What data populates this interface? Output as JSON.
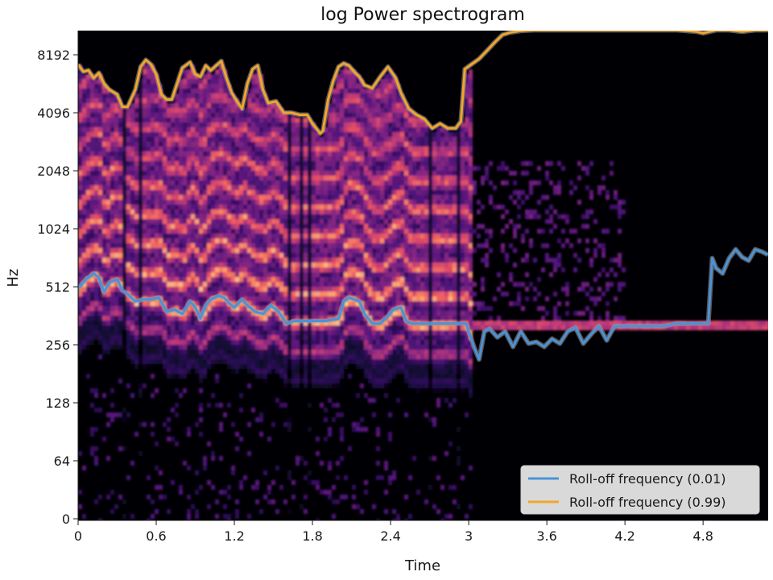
{
  "chart_data": {
    "type": "heatmap",
    "title": "log Power spectrogram",
    "xlabel": "Time",
    "ylabel": "Hz",
    "x_ticks": [
      "0",
      "0.6",
      "1.2",
      "1.8",
      "2.4",
      "3",
      "3.6",
      "4.2",
      "4.8"
    ],
    "x_tick_values": [
      0,
      0.6,
      1.2,
      1.8,
      2.4,
      3.0,
      3.6,
      4.2,
      4.8
    ],
    "y_ticks": [
      "0",
      "64",
      "128",
      "256",
      "512",
      "1024",
      "2048",
      "4096",
      "8192"
    ],
    "y_tick_values": [
      0,
      64,
      128,
      256,
      512,
      1024,
      2048,
      4096,
      8192
    ],
    "xlim": [
      0,
      5.3
    ],
    "ylim": [
      0,
      11025
    ],
    "y_scale": "log2",
    "colormap": "magma",
    "legend_position": "bottom-right",
    "series": [
      {
        "name": "Roll-off frequency (0.01)",
        "color": "#4c92d6",
        "time": [
          0,
          0.06,
          0.12,
          0.16,
          0.2,
          0.24,
          0.3,
          0.34,
          0.38,
          0.44,
          0.5,
          0.56,
          0.62,
          0.68,
          0.74,
          0.8,
          0.86,
          0.9,
          0.94,
          0.98,
          1.02,
          1.08,
          1.12,
          1.16,
          1.2,
          1.26,
          1.3,
          1.36,
          1.42,
          1.48,
          1.54,
          1.6,
          1.66,
          1.72,
          1.8,
          1.9,
          2.0,
          2.04,
          2.08,
          2.12,
          2.16,
          2.2,
          2.26,
          2.32,
          2.38,
          2.42,
          2.48,
          2.52,
          2.56,
          2.62,
          2.7,
          2.8,
          2.9,
          2.98,
          3.0,
          3.04,
          3.08,
          3.12,
          3.16,
          3.22,
          3.28,
          3.34,
          3.4,
          3.46,
          3.52,
          3.58,
          3.64,
          3.7,
          3.76,
          3.82,
          3.88,
          3.94,
          4.0,
          4.06,
          4.12,
          4.18,
          4.24,
          4.3,
          4.4,
          4.5,
          4.6,
          4.7,
          4.8,
          4.84,
          4.87,
          4.9,
          4.95,
          5.0,
          5.05,
          5.1,
          5.15,
          5.2,
          5.25,
          5.3
        ],
        "values": [
          500,
          560,
          600,
          570,
          480,
          540,
          560,
          490,
          470,
          430,
          440,
          440,
          450,
          380,
          390,
          370,
          430,
          400,
          350,
          410,
          440,
          460,
          450,
          420,
          400,
          440,
          410,
          380,
          370,
          410,
          380,
          330,
          340,
          340,
          340,
          340,
          350,
          430,
          450,
          440,
          430,
          370,
          330,
          330,
          360,
          390,
          400,
          340,
          330,
          330,
          330,
          330,
          330,
          330,
          300,
          250,
          215,
          300,
          310,
          280,
          300,
          250,
          300,
          260,
          265,
          250,
          275,
          260,
          300,
          315,
          260,
          290,
          320,
          270,
          320,
          320,
          320,
          320,
          320,
          320,
          330,
          330,
          330,
          330,
          720,
          640,
          600,
          720,
          800,
          730,
          700,
          800,
          780,
          750
        ]
      },
      {
        "name": "Roll-off frequency (0.99)",
        "color": "#f2a52b",
        "time": [
          0,
          0.04,
          0.08,
          0.12,
          0.16,
          0.2,
          0.24,
          0.3,
          0.34,
          0.38,
          0.44,
          0.48,
          0.52,
          0.56,
          0.6,
          0.64,
          0.68,
          0.72,
          0.8,
          0.86,
          0.9,
          0.94,
          0.98,
          1.02,
          1.06,
          1.1,
          1.14,
          1.18,
          1.22,
          1.26,
          1.3,
          1.34,
          1.38,
          1.42,
          1.46,
          1.52,
          1.58,
          1.64,
          1.7,
          1.76,
          1.8,
          1.86,
          1.88,
          1.92,
          1.96,
          2.0,
          2.04,
          2.08,
          2.12,
          2.16,
          2.2,
          2.26,
          2.32,
          2.38,
          2.44,
          2.48,
          2.54,
          2.6,
          2.66,
          2.72,
          2.78,
          2.84,
          2.9,
          2.94,
          2.97,
          3.02,
          3.08,
          3.14,
          3.2,
          3.26,
          3.32,
          3.4,
          3.5,
          3.6,
          3.7,
          3.8,
          3.9,
          4.0,
          4.1,
          4.2,
          4.4,
          4.6,
          4.75,
          4.8,
          4.9,
          5.0,
          5.1,
          5.2,
          5.3
        ],
        "values": [
          7300,
          6700,
          6800,
          6200,
          6600,
          5800,
          5400,
          5100,
          4400,
          4400,
          5400,
          7100,
          7700,
          7300,
          6500,
          5100,
          4800,
          4800,
          7000,
          7500,
          6500,
          6300,
          7200,
          6800,
          7200,
          7600,
          6200,
          5200,
          4700,
          4300,
          5800,
          6900,
          7200,
          5400,
          4600,
          4700,
          4100,
          4100,
          4000,
          4000,
          3600,
          3200,
          3300,
          4800,
          6000,
          7100,
          7400,
          7200,
          6700,
          6300,
          5700,
          5500,
          6300,
          7100,
          6200,
          5200,
          4300,
          4000,
          3800,
          3400,
          3600,
          3400,
          3400,
          3700,
          6900,
          7300,
          7800,
          8600,
          9500,
          10400,
          10700,
          10900,
          11000,
          11000,
          11000,
          11000,
          11000,
          11000,
          11000,
          11000,
          11000,
          11000,
          10800,
          10600,
          11000,
          11000,
          10800,
          11000,
          11000
        ]
      }
    ]
  }
}
